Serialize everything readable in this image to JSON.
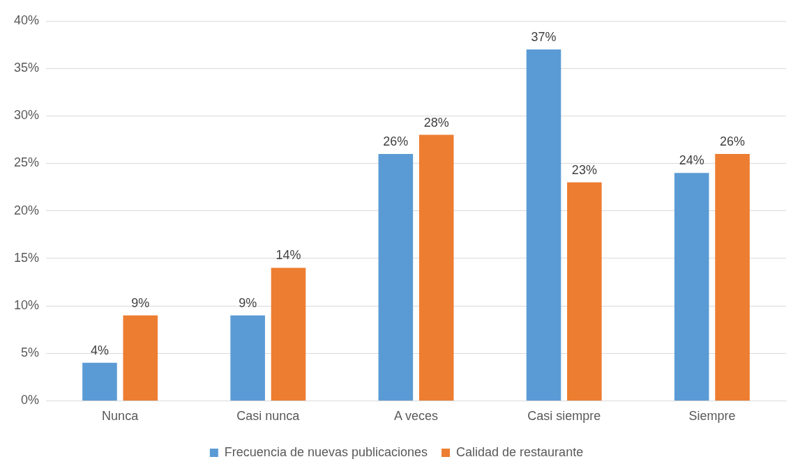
{
  "chart_data": {
    "type": "bar",
    "categories": [
      "Nunca",
      "Casi nunca",
      "A veces",
      "Casi siempre",
      "Siempre"
    ],
    "series": [
      {
        "name": "Frecuencia de nuevas publicaciones",
        "color": "#5b9bd5",
        "values": [
          4,
          9,
          26,
          37,
          24
        ],
        "value_labels": [
          "4%",
          "9%",
          "26%",
          "37%",
          "24%"
        ]
      },
      {
        "name": "Calidad de restaurante",
        "color": "#ed7d31",
        "values": [
          9,
          14,
          28,
          23,
          26
        ],
        "value_labels": [
          "9%",
          "14%",
          "28%",
          "23%",
          "26%"
        ]
      }
    ],
    "ylim": [
      0,
      40
    ],
    "yticks": [
      {
        "value": 0,
        "label": "0%"
      },
      {
        "value": 5,
        "label": "5%"
      },
      {
        "value": 10,
        "label": "10%"
      },
      {
        "value": 15,
        "label": "15%"
      },
      {
        "value": 20,
        "label": "20%"
      },
      {
        "value": 25,
        "label": "25%"
      },
      {
        "value": 30,
        "label": "30%"
      },
      {
        "value": 35,
        "label": "35%"
      },
      {
        "value": 40,
        "label": "40%"
      }
    ],
    "grid": "y",
    "legend": "bottom"
  }
}
